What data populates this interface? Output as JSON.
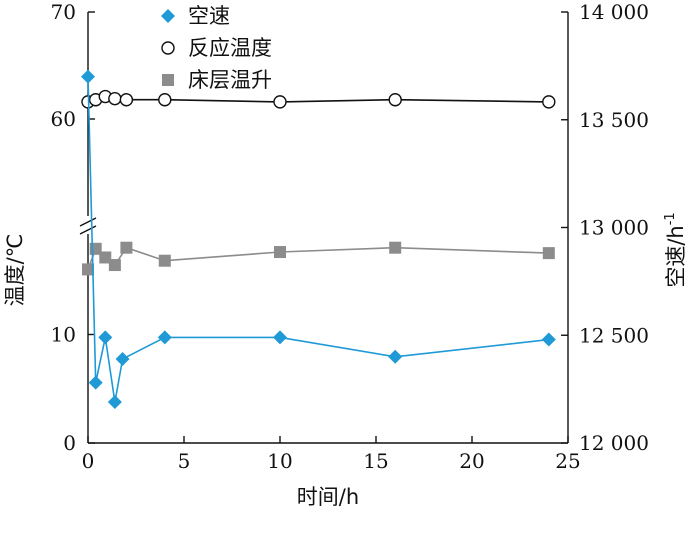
{
  "chart_data": {
    "type": "line",
    "x_axis": {
      "label": "时间/h",
      "range": [
        0,
        25
      ],
      "ticks": [
        0,
        5,
        10,
        15,
        20,
        25
      ],
      "tick_labels": [
        "0",
        "5",
        "10",
        "15",
        "20",
        "25"
      ]
    },
    "y_left": {
      "label": "温度/℃",
      "broken": true,
      "lower_range": [
        0,
        20
      ],
      "upper_range": [
        50,
        70
      ],
      "tick_values": [
        0,
        10,
        60,
        70
      ],
      "tick_labels": [
        "0",
        "10",
        "60",
        "70"
      ]
    },
    "y_right": {
      "label": "空速/h",
      "label_superscript": "-1",
      "range": [
        12000,
        14000
      ],
      "ticks": [
        12000,
        12500,
        13000,
        13500,
        14000
      ],
      "tick_labels": [
        "12 000",
        "12 500",
        "13 000",
        "13 500",
        "14 000"
      ]
    },
    "legend": {
      "position": "top-left",
      "items": [
        {
          "label": "空速",
          "marker": "diamond",
          "color": "#1f9ad6"
        },
        {
          "label": "反应温度",
          "marker": "open-circle",
          "color": "#111111"
        },
        {
          "label": "床层温升",
          "marker": "square",
          "color": "#8c8c8c"
        }
      ]
    },
    "series": [
      {
        "name": "空速",
        "axis": "right",
        "marker": "diamond",
        "color": "#1f9ad6",
        "x": [
          0,
          0.4,
          0.9,
          1.4,
          1.8,
          4,
          10,
          16,
          24
        ],
        "values": [
          13700,
          12280,
          12490,
          12190,
          12390,
          12490,
          12490,
          12400,
          12480
        ]
      },
      {
        "name": "反应温度",
        "axis": "left",
        "marker": "open-circle",
        "color": "#111111",
        "x": [
          0,
          0.4,
          0.9,
          1.4,
          2,
          4,
          10,
          16,
          24
        ],
        "values": [
          61.6,
          61.8,
          62.1,
          61.9,
          61.8,
          61.8,
          61.6,
          61.8,
          61.6
        ]
      },
      {
        "name": "床层温升",
        "axis": "left",
        "marker": "square",
        "color": "#8c8c8c",
        "x": [
          0,
          0.4,
          0.9,
          1.4,
          2,
          4,
          10,
          16,
          24
        ],
        "values": [
          16.0,
          17.9,
          17.1,
          16.4,
          18.0,
          16.8,
          17.6,
          18.0,
          17.5
        ]
      }
    ],
    "line_colors": {
      "空速": "#1f9ad6",
      "反应温度": "#111111",
      "床层温升": "#8c8c8c"
    }
  }
}
